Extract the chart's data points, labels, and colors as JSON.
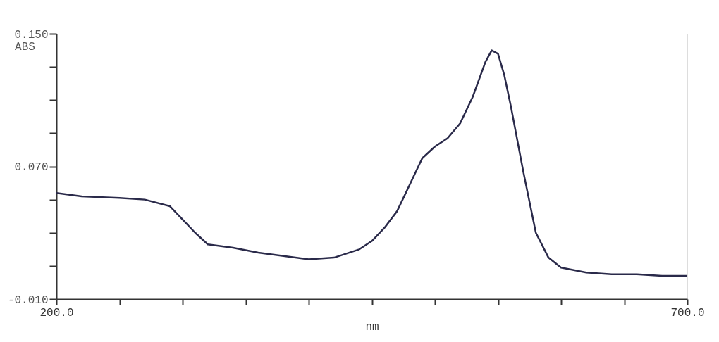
{
  "chart_data": {
    "type": "line",
    "xlabel": "nm",
    "ylabel": "ABS",
    "x": [
      200,
      220,
      250,
      270,
      290,
      300,
      310,
      320,
      340,
      360,
      380,
      400,
      420,
      440,
      450,
      460,
      470,
      480,
      490,
      500,
      510,
      520,
      530,
      540,
      545,
      550,
      555,
      560,
      570,
      580,
      590,
      600,
      620,
      640,
      660,
      680,
      700
    ],
    "series": [
      {
        "color": "#2a2a4a",
        "values": [
          0.054,
          0.052,
          0.051,
          0.05,
          0.046,
          0.038,
          0.03,
          0.023,
          0.021,
          0.018,
          0.016,
          0.014,
          0.015,
          0.02,
          0.025,
          0.033,
          0.043,
          0.059,
          0.075,
          0.082,
          0.087,
          0.096,
          0.112,
          0.133,
          0.14,
          0.138,
          0.125,
          0.107,
          0.067,
          0.03,
          0.015,
          0.009,
          0.006,
          0.005,
          0.005,
          0.004,
          0.004
        ]
      }
    ],
    "xlim": [
      200,
      700
    ],
    "xticks": [
      {
        "value": 200,
        "label": "200.0"
      },
      {
        "value": 250,
        "label": null
      },
      {
        "value": 300,
        "label": null
      },
      {
        "value": 350,
        "label": null
      },
      {
        "value": 400,
        "label": null
      },
      {
        "value": 450,
        "label": null
      },
      {
        "value": 500,
        "label": null
      },
      {
        "value": 550,
        "label": null
      },
      {
        "value": 600,
        "label": null
      },
      {
        "value": 650,
        "label": null
      },
      {
        "value": 700,
        "label": "700.0"
      }
    ],
    "ylim": [
      -0.01,
      0.15
    ],
    "yticks": [
      {
        "value": -0.01,
        "label": "-0.010"
      },
      {
        "value": 0.01,
        "label": null
      },
      {
        "value": 0.03,
        "label": null
      },
      {
        "value": 0.05,
        "label": null
      },
      {
        "value": 0.07,
        "label": "0.070"
      },
      {
        "value": 0.09,
        "label": null
      },
      {
        "value": 0.11,
        "label": null
      },
      {
        "value": 0.13,
        "label": null
      },
      {
        "value": 0.15,
        "label": "0.150"
      }
    ],
    "grid": false,
    "marker": "none",
    "line_style": "solid"
  }
}
